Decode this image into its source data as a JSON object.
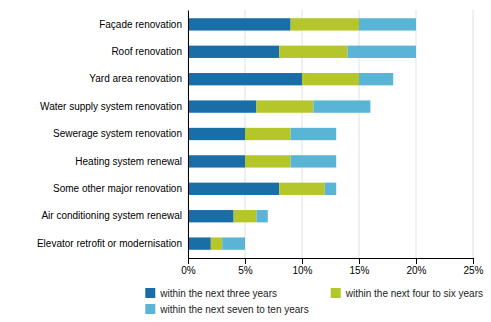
{
  "chart_data": {
    "type": "bar",
    "orientation": "horizontal",
    "stacked": true,
    "grid": true,
    "legend": "bottom",
    "categories": [
      "Façade renovation",
      "Roof renovation",
      "Yard area renovation",
      "Water supply system renovation",
      "Sewerage system renovation",
      "Heating system renewal",
      "Some other major renovation",
      "Air conditioning system renewal",
      "Elevator retrofit or modernisation"
    ],
    "series": [
      {
        "name": "within the next three years",
        "color": "#1a6ea8",
        "values": [
          9,
          8,
          10,
          6,
          5,
          5,
          8,
          4,
          2
        ]
      },
      {
        "name": "within the next four to six years",
        "color": "#b5c62a",
        "values": [
          6,
          6,
          5,
          5,
          4,
          4,
          4,
          2,
          1
        ]
      },
      {
        "name": "within the next seven to ten years",
        "color": "#5ab4d6",
        "values": [
          5,
          6,
          3,
          5,
          4,
          4,
          1,
          1,
          2
        ]
      }
    ],
    "xlim": [
      0,
      25
    ],
    "xticks": [
      {
        "value": 0,
        "label": "0%"
      },
      {
        "value": 5,
        "label": "5%"
      },
      {
        "value": 10,
        "label": "10%"
      },
      {
        "value": 15,
        "label": "15%"
      },
      {
        "value": 20,
        "label": "20%"
      },
      {
        "value": 25,
        "label": "25%"
      }
    ]
  }
}
